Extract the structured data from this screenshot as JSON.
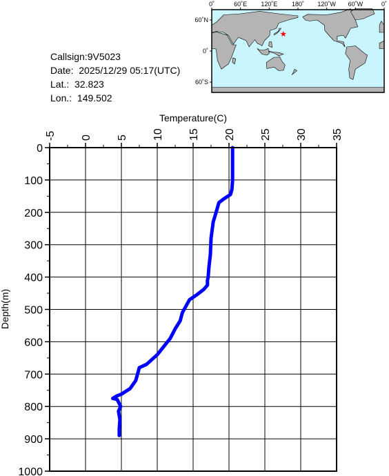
{
  "info": {
    "callsign": "Callsign:9V5023",
    "date": "Date:  2025/12/29 05:17(UTC)",
    "lat": "Lat.:  32.823",
    "lon": "Lon.:  149.502"
  },
  "map": {
    "lon_labels": [
      "0˚",
      "60˚E",
      "120˚E",
      "180˚",
      "120˚W",
      "60˚W",
      "0˚"
    ],
    "lat_labels": [
      "60˚N",
      "0˚",
      "60˚S"
    ],
    "ocean_color": "#c8f5ff",
    "land_color": "#b4b4b4",
    "marker": {
      "lon": 149.502,
      "lat": 32.823,
      "color": "#ff0000",
      "icon": "star-icon"
    }
  },
  "chart_data": {
    "type": "line",
    "xlabel": "Temperature(C)",
    "ylabel": "Depth(m)",
    "xlim": [
      -5,
      35
    ],
    "ylim": [
      0,
      1000
    ],
    "y_inverted": true,
    "x_ticks": [
      -5,
      0,
      5,
      10,
      15,
      20,
      25,
      30,
      35
    ],
    "y_ticks": [
      0,
      100,
      200,
      300,
      400,
      500,
      600,
      700,
      800,
      900,
      1000
    ],
    "grid": true,
    "series": [
      {
        "color": "#0000ff",
        "x": [
          20.5,
          20.5,
          20.5,
          20.4,
          20.2,
          19.3,
          18.6,
          18.2,
          17.8,
          17.5,
          17.4,
          17.2,
          17.1,
          17.0,
          17.0,
          16.5,
          15.5,
          14.5,
          13.5,
          13.2,
          12.5,
          11.8,
          10.0,
          8.5,
          7.5,
          7.0,
          6.2,
          5.0,
          4.3,
          3.8,
          4.4,
          4.9,
          4.6,
          4.8,
          4.7,
          4.7
        ],
        "y": [
          0,
          50,
          100,
          130,
          145,
          158,
          170,
          200,
          230,
          280,
          330,
          370,
          400,
          410,
          425,
          438,
          455,
          470,
          510,
          535,
          560,
          590,
          640,
          670,
          680,
          720,
          745,
          762,
          768,
          775,
          778,
          800,
          815,
          840,
          870,
          890
        ]
      }
    ]
  }
}
